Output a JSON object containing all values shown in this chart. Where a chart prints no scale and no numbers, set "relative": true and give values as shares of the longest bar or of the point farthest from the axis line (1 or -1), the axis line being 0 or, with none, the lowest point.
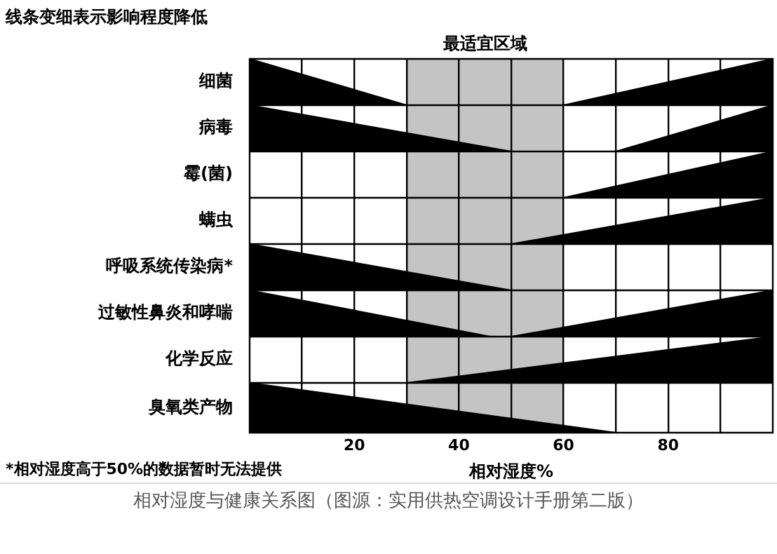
{
  "chart_data": [
    {
      "type": "area",
      "title": "线条变细表示影响程度降低",
      "ylabel": "细菌",
      "x": [
        0,
        30,
        60,
        100
      ],
      "values": [
        1,
        0,
        0,
        1
      ],
      "color": "#000000",
      "relative": true,
      "xlim": [
        0,
        100
      ],
      "xticks": [
        {
          "value": 10,
          "label": null
        },
        {
          "value": 20,
          "label": null
        },
        {
          "value": 30,
          "label": null
        },
        {
          "value": 40,
          "label": null
        },
        {
          "value": 50,
          "label": null
        },
        {
          "value": 60,
          "label": null
        },
        {
          "value": 70,
          "label": null
        },
        {
          "value": 80,
          "label": null
        },
        {
          "value": 90,
          "label": null
        }
      ],
      "grid": "x",
      "tick_labels": false,
      "bands": [
        {
          "axis": "x",
          "from": 30,
          "to": 60,
          "label": "最适宜区域",
          "color": "#c4c4c4"
        }
      ]
    },
    {
      "type": "area",
      "ylabel": "病毒",
      "x": [
        0,
        50,
        70,
        100
      ],
      "values": [
        1,
        0,
        0,
        1
      ],
      "color": "#000000",
      "relative": true,
      "xlim": [
        0,
        100
      ],
      "xticks": [
        {
          "value": 10,
          "label": null
        },
        {
          "value": 20,
          "label": null
        },
        {
          "value": 30,
          "label": null
        },
        {
          "value": 40,
          "label": null
        },
        {
          "value": 50,
          "label": null
        },
        {
          "value": 60,
          "label": null
        },
        {
          "value": 70,
          "label": null
        },
        {
          "value": 80,
          "label": null
        },
        {
          "value": 90,
          "label": null
        }
      ],
      "grid": "x",
      "tick_labels": false,
      "bands": [
        {
          "axis": "x",
          "from": 30,
          "to": 60,
          "color": "#c4c4c4"
        }
      ]
    },
    {
      "type": "area",
      "ylabel": "霉(菌)",
      "x": [
        0,
        60,
        100
      ],
      "values": [
        0,
        0,
        1
      ],
      "color": "#000000",
      "relative": true,
      "xlim": [
        0,
        100
      ],
      "xticks": [
        {
          "value": 10,
          "label": null
        },
        {
          "value": 20,
          "label": null
        },
        {
          "value": 30,
          "label": null
        },
        {
          "value": 40,
          "label": null
        },
        {
          "value": 50,
          "label": null
        },
        {
          "value": 60,
          "label": null
        },
        {
          "value": 70,
          "label": null
        },
        {
          "value": 80,
          "label": null
        },
        {
          "value": 90,
          "label": null
        }
      ],
      "grid": "x",
      "tick_labels": false,
      "bands": [
        {
          "axis": "x",
          "from": 30,
          "to": 60,
          "color": "#c4c4c4"
        }
      ]
    },
    {
      "type": "area",
      "ylabel": "螨虫",
      "x": [
        0,
        50,
        100
      ],
      "values": [
        0,
        0,
        1
      ],
      "color": "#000000",
      "relative": true,
      "xlim": [
        0,
        100
      ],
      "xticks": [
        {
          "value": 10,
          "label": null
        },
        {
          "value": 20,
          "label": null
        },
        {
          "value": 30,
          "label": null
        },
        {
          "value": 40,
          "label": null
        },
        {
          "value": 50,
          "label": null
        },
        {
          "value": 60,
          "label": null
        },
        {
          "value": 70,
          "label": null
        },
        {
          "value": 80,
          "label": null
        },
        {
          "value": 90,
          "label": null
        }
      ],
      "grid": "x",
      "tick_labels": false,
      "bands": [
        {
          "axis": "x",
          "from": 30,
          "to": 60,
          "color": "#c4c4c4"
        }
      ]
    },
    {
      "type": "area",
      "ylabel": "呼吸系统传染病*",
      "x": [
        0,
        50
      ],
      "values": [
        1,
        0
      ],
      "color": "#000000",
      "relative": true,
      "xlim": [
        0,
        100
      ],
      "xticks": [
        {
          "value": 10,
          "label": null
        },
        {
          "value": 20,
          "label": null
        },
        {
          "value": 30,
          "label": null
        },
        {
          "value": 40,
          "label": null
        },
        {
          "value": 50,
          "label": null
        },
        {
          "value": 60,
          "label": null
        },
        {
          "value": 70,
          "label": null
        },
        {
          "value": 80,
          "label": null
        },
        {
          "value": 90,
          "label": null
        }
      ],
      "grid": "x",
      "tick_labels": false,
      "bands": [
        {
          "axis": "x",
          "from": 30,
          "to": 60,
          "color": "#c4c4c4"
        }
      ]
    },
    {
      "type": "area",
      "ylabel": "过敏性鼻炎和哮喘",
      "x": [
        0,
        46,
        50,
        100
      ],
      "values": [
        1,
        0,
        0,
        1
      ],
      "color": "#000000",
      "relative": true,
      "xlim": [
        0,
        100
      ],
      "xticks": [
        {
          "value": 10,
          "label": null
        },
        {
          "value": 20,
          "label": null
        },
        {
          "value": 30,
          "label": null
        },
        {
          "value": 40,
          "label": null
        },
        {
          "value": 50,
          "label": null
        },
        {
          "value": 60,
          "label": null
        },
        {
          "value": 70,
          "label": null
        },
        {
          "value": 80,
          "label": null
        },
        {
          "value": 90,
          "label": null
        }
      ],
      "grid": "x",
      "tick_labels": false,
      "bands": [
        {
          "axis": "x",
          "from": 30,
          "to": 60,
          "color": "#c4c4c4"
        }
      ]
    },
    {
      "type": "area",
      "ylabel": "化学反应",
      "x": [
        0,
        30,
        100
      ],
      "values": [
        0,
        0,
        1
      ],
      "color": "#000000",
      "relative": true,
      "xlim": [
        0,
        100
      ],
      "xticks": [
        {
          "value": 10,
          "label": null
        },
        {
          "value": 20,
          "label": null
        },
        {
          "value": 30,
          "label": null
        },
        {
          "value": 40,
          "label": null
        },
        {
          "value": 50,
          "label": null
        },
        {
          "value": 60,
          "label": null
        },
        {
          "value": 70,
          "label": null
        },
        {
          "value": 80,
          "label": null
        },
        {
          "value": 90,
          "label": null
        }
      ],
      "grid": "x",
      "tick_labels": false,
      "bands": [
        {
          "axis": "x",
          "from": 30,
          "to": 60,
          "color": "#c4c4c4"
        }
      ]
    },
    {
      "type": "area",
      "ylabel": "臭氧类产物",
      "xlabel": "相对湿度%",
      "x": [
        0,
        70,
        100
      ],
      "values": [
        1,
        0,
        0
      ],
      "color": "#000000",
      "relative": true,
      "xlim": [
        0,
        100
      ],
      "xticks": [
        {
          "value": 10,
          "label": null
        },
        20,
        {
          "value": 30,
          "label": null
        },
        40,
        {
          "value": 50,
          "label": null
        },
        60,
        {
          "value": 70,
          "label": null
        },
        80,
        {
          "value": 90,
          "label": null
        }
      ],
      "grid": "x",
      "tick_labels": "x",
      "bands": [
        {
          "axis": "x",
          "from": 30,
          "to": 60,
          "color": "#c4c4c4"
        }
      ],
      "annotations": [
        "*相对湿度高于50%的数据暂时无法提供",
        "相对湿度与健康关系图（图源：实用供热空调设计手册第二版）"
      ]
    }
  ]
}
